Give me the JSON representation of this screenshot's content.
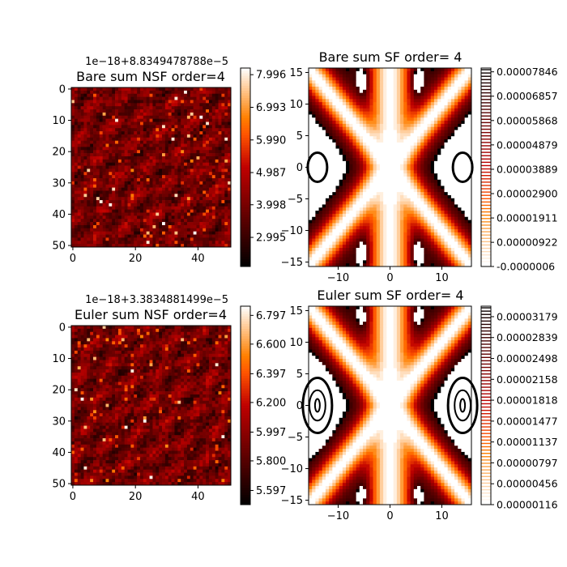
{
  "chart_data": [
    {
      "type": "heatmap",
      "title": "Bare sum NSF order=4",
      "offset_label": "1e−18+8.8349478788e−5",
      "x_ticks": [
        0,
        20,
        40
      ],
      "y_ticks": [
        0,
        10,
        20,
        30,
        40,
        50
      ],
      "grid_size": 51,
      "colormap": "gist_heat",
      "colorbar_ticks": [
        "2.995",
        "3.998",
        "4.987",
        "5.990",
        "6.993",
        "7.996"
      ],
      "colorbar_range": [
        2.1,
        8.2
      ]
    },
    {
      "type": "contour",
      "title": "Bare sum SF order= 4",
      "x_ticks": [
        -10,
        0,
        10
      ],
      "y_ticks": [
        -15,
        -10,
        -5,
        0,
        5,
        10,
        15
      ],
      "xlim": [
        -15.7,
        15.7
      ],
      "ylim": [
        -15.7,
        15.7
      ],
      "colormap": "gist_heat_r",
      "colorbar_ticks": [
        "-0.0000006",
        "0.00000922",
        "0.00001911",
        "0.00002900",
        "0.00003889",
        "0.00004879",
        "0.00005868",
        "0.00006857",
        "0.00007846"
      ],
      "level_range": [
        -6e-07,
        8e-05
      ]
    },
    {
      "type": "heatmap",
      "title": "Euler sum NSF order=4",
      "offset_label": "1e−18+3.3834881499e−5",
      "x_ticks": [
        0,
        20,
        40
      ],
      "y_ticks": [
        0,
        10,
        20,
        30,
        40,
        50
      ],
      "grid_size": 51,
      "colormap": "gist_heat",
      "colorbar_ticks": [
        "5.597",
        "5.800",
        "5.997",
        "6.200",
        "6.397",
        "6.600",
        "6.797"
      ],
      "colorbar_range": [
        5.5,
        6.86
      ]
    },
    {
      "type": "contour",
      "title": "Euler sum SF order= 4",
      "x_ticks": [
        -10,
        0,
        10
      ],
      "y_ticks": [
        -15,
        -10,
        -5,
        0,
        5,
        10,
        15
      ],
      "xlim": [
        -15.7,
        15.7
      ],
      "ylim": [
        -15.7,
        15.7
      ],
      "colormap": "gist_heat_r",
      "colorbar_ticks": [
        "0.00000116",
        "0.00000456",
        "0.00000797",
        "0.00001137",
        "0.00001477",
        "0.00001818",
        "0.00002158",
        "0.00002498",
        "0.00002839",
        "0.00003179"
      ],
      "level_range": [
        1.16e-06,
        3.35e-05
      ]
    }
  ]
}
